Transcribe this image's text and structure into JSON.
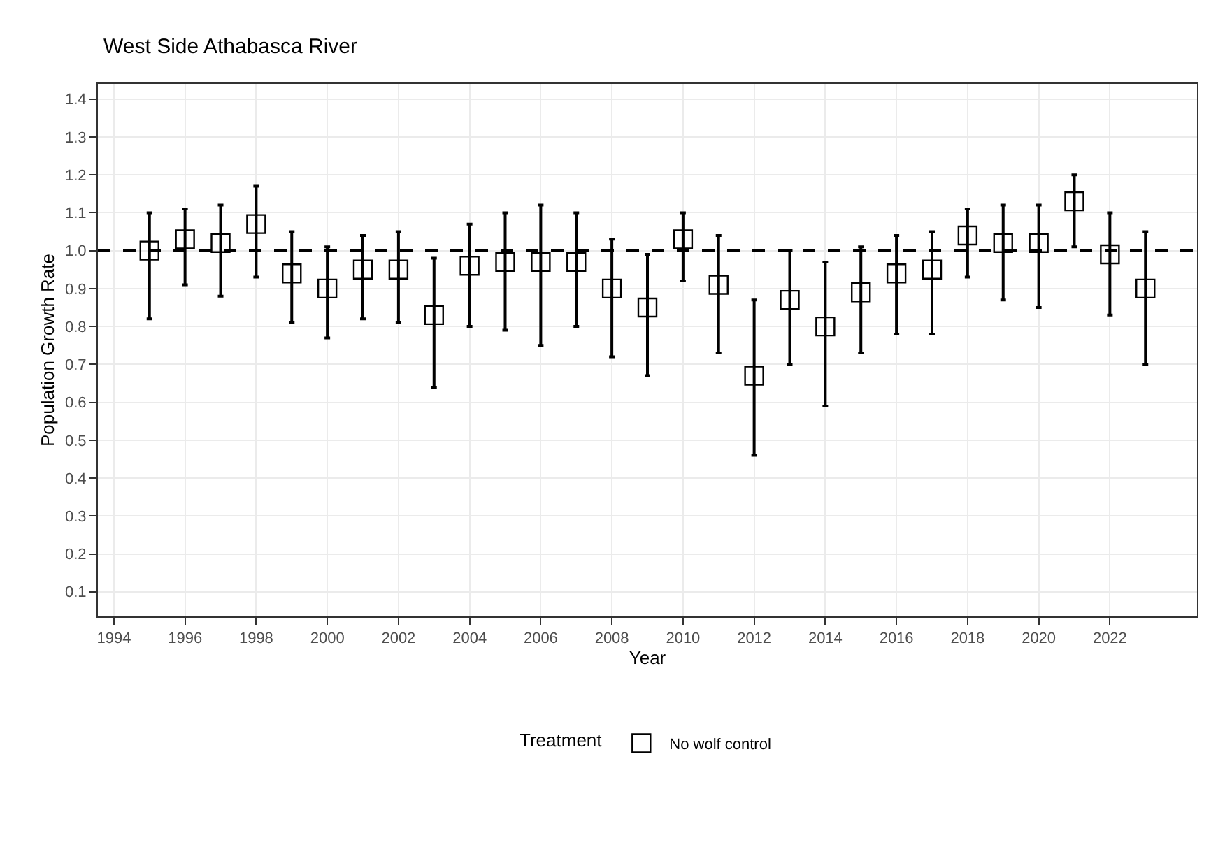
{
  "chart_data": {
    "type": "scatter",
    "title": "West Side Athabasca River",
    "xlabel": "Year",
    "ylabel": "Population Growth Rate",
    "legend_title": "Treatment",
    "x": [
      1995,
      1996,
      1997,
      1998,
      1999,
      2000,
      2001,
      2002,
      2003,
      2004,
      2005,
      2006,
      2007,
      2008,
      2009,
      2010,
      2011,
      2012,
      2013,
      2014,
      2015,
      2016,
      2017,
      2018,
      2019,
      2020,
      2021,
      2022,
      2023
    ],
    "series": [
      {
        "name": "No wolf control",
        "color": "#000000",
        "values": [
          1.0,
          1.03,
          1.02,
          1.07,
          0.94,
          0.9,
          0.95,
          0.95,
          0.83,
          0.96,
          0.97,
          0.97,
          0.97,
          0.9,
          0.85,
          1.03,
          0.91,
          0.67,
          0.87,
          0.8,
          0.89,
          0.94,
          0.95,
          1.04,
          1.02,
          1.02,
          1.13,
          0.99,
          0.9
        ],
        "errors": [
          [
            0.82,
            1.1
          ],
          [
            0.91,
            1.11
          ],
          [
            0.88,
            1.12
          ],
          [
            0.93,
            1.17
          ],
          [
            0.81,
            1.05
          ],
          [
            0.77,
            1.01
          ],
          [
            0.82,
            1.04
          ],
          [
            0.81,
            1.05
          ],
          [
            0.64,
            0.98
          ],
          [
            0.8,
            1.07
          ],
          [
            0.79,
            1.1
          ],
          [
            0.75,
            1.12
          ],
          [
            0.8,
            1.1
          ],
          [
            0.72,
            1.03
          ],
          [
            0.67,
            0.99
          ],
          [
            0.92,
            1.1
          ],
          [
            0.73,
            1.04
          ],
          [
            0.46,
            0.87
          ],
          [
            0.7,
            1.0
          ],
          [
            0.59,
            0.97
          ],
          [
            0.73,
            1.01
          ],
          [
            0.78,
            1.04
          ],
          [
            0.78,
            1.05
          ],
          [
            0.93,
            1.11
          ],
          [
            0.87,
            1.12
          ],
          [
            0.85,
            1.12
          ],
          [
            1.01,
            1.2
          ],
          [
            0.83,
            1.1
          ],
          [
            0.7,
            1.05
          ]
        ]
      }
    ],
    "xlim": [
      1993.55,
      2024.45
    ],
    "xticks": [
      1994,
      1996,
      1998,
      2000,
      2002,
      2004,
      2006,
      2008,
      2010,
      2012,
      2014,
      2016,
      2018,
      2020,
      2022
    ],
    "ylim": [
      0.035,
      1.44
    ],
    "yticks": [
      0.1,
      0.2,
      0.3,
      0.4,
      0.5,
      0.6,
      0.7,
      0.8,
      0.9,
      {
        "value": 1.0,
        "label": "1.0"
      },
      1.1,
      1.2,
      1.3,
      1.4
    ],
    "ref_lines": [
      {
        "axis": "y",
        "value": 1.0,
        "line_style": "dashed",
        "color": "#000000"
      }
    ],
    "grid": true,
    "legend": "bottom",
    "marker": "square"
  }
}
